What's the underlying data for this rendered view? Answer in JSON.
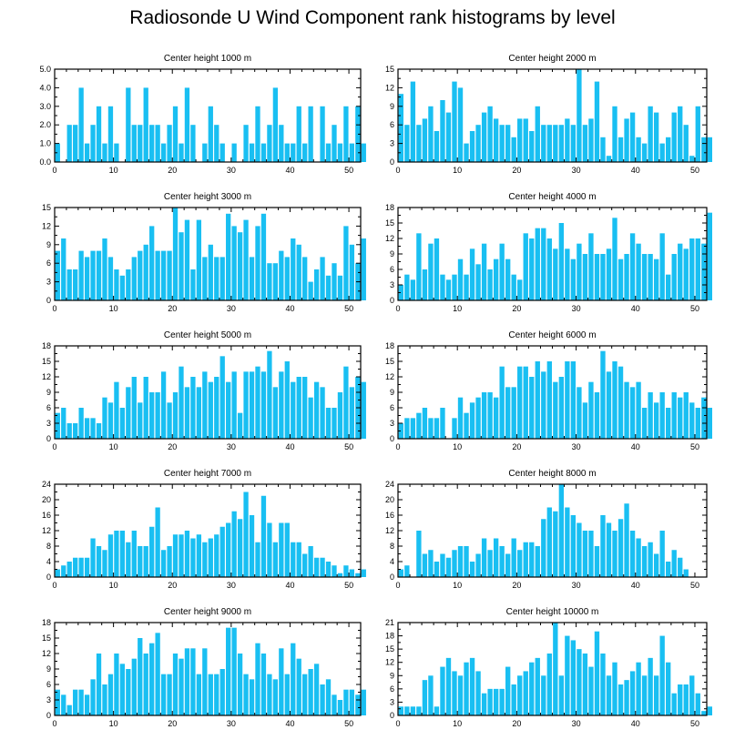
{
  "figure": {
    "title": "Radiosonde U Wind Component rank histograms by level",
    "bar_color": "#19bff2"
  },
  "chart_data": [
    {
      "type": "bar",
      "title": "Center height 1000 m",
      "xlim": [
        0,
        52
      ],
      "ylim": [
        0,
        5
      ],
      "xticks": [
        0,
        10,
        20,
        30,
        40,
        50
      ],
      "yticks": [
        0,
        1,
        2,
        3,
        4,
        5
      ],
      "ytick_labels": [
        "0.0",
        "1.0",
        "2.0",
        "3.0",
        "4.0",
        "5.0"
      ],
      "values": [
        1,
        0,
        2,
        2,
        4,
        1,
        2,
        3,
        1,
        3,
        1,
        0,
        4,
        2,
        2,
        4,
        2,
        2,
        1,
        2,
        3,
        1,
        4,
        2,
        0,
        1,
        3,
        2,
        1,
        0,
        1,
        0,
        2,
        1,
        3,
        1,
        2,
        4,
        2,
        1,
        1,
        3,
        1,
        3,
        0,
        3,
        1,
        2,
        1,
        3,
        1,
        3,
        1
      ]
    },
    {
      "type": "bar",
      "title": "Center height 2000 m",
      "xlim": [
        0,
        52
      ],
      "ylim": [
        0,
        15
      ],
      "xticks": [
        0,
        10,
        20,
        30,
        40,
        50
      ],
      "yticks": [
        0,
        3,
        6,
        9,
        12,
        15
      ],
      "ytick_labels": [
        "0",
        "3",
        "6",
        "9",
        "12",
        "15"
      ],
      "values": [
        11,
        6,
        13,
        6,
        7,
        9,
        5,
        10,
        8,
        13,
        12,
        3,
        5,
        6,
        8,
        9,
        7,
        6,
        6,
        4,
        7,
        7,
        5,
        9,
        6,
        6,
        6,
        6,
        7,
        6,
        15,
        6,
        7,
        13,
        4,
        1,
        9,
        4,
        7,
        8,
        4,
        3,
        9,
        8,
        3,
        4,
        8,
        9,
        6,
        1,
        9,
        4,
        4
      ]
    },
    {
      "type": "bar",
      "title": "Center height 3000 m",
      "xlim": [
        0,
        52
      ],
      "ylim": [
        0,
        15
      ],
      "xticks": [
        0,
        10,
        20,
        30,
        40,
        50
      ],
      "yticks": [
        0,
        3,
        6,
        9,
        12,
        15
      ],
      "ytick_labels": [
        "0",
        "3",
        "6",
        "9",
        "12",
        "15"
      ],
      "values": [
        8,
        10,
        5,
        5,
        8,
        7,
        8,
        8,
        10,
        7,
        5,
        4,
        5,
        7,
        8,
        9,
        12,
        8,
        8,
        8,
        15,
        11,
        13,
        5,
        13,
        7,
        9,
        7,
        7,
        14,
        12,
        11,
        13,
        7,
        12,
        14,
        6,
        6,
        8,
        7,
        10,
        9,
        7,
        3,
        5,
        7,
        4,
        6,
        4,
        12,
        9,
        6,
        10
      ]
    },
    {
      "type": "bar",
      "title": "Center height 4000 m",
      "xlim": [
        0,
        52
      ],
      "ylim": [
        0,
        18
      ],
      "xticks": [
        0,
        10,
        20,
        30,
        40,
        50
      ],
      "yticks": [
        0,
        3,
        6,
        9,
        12,
        15,
        18
      ],
      "ytick_labels": [
        "0",
        "3",
        "6",
        "9",
        "12",
        "15",
        "18"
      ],
      "values": [
        3,
        5,
        4,
        13,
        6,
        11,
        12,
        5,
        4,
        5,
        8,
        5,
        10,
        7,
        11,
        6,
        8,
        11,
        8,
        5,
        4,
        13,
        12,
        14,
        14,
        12,
        10,
        15,
        10,
        8,
        11,
        9,
        13,
        9,
        9,
        10,
        16,
        8,
        9,
        13,
        11,
        9,
        9,
        8,
        13,
        5,
        9,
        11,
        10,
        12,
        12,
        11,
        17
      ]
    },
    {
      "type": "bar",
      "title": "Center height 5000 m",
      "xlim": [
        0,
        52
      ],
      "ylim": [
        0,
        18
      ],
      "xticks": [
        0,
        10,
        20,
        30,
        40,
        50
      ],
      "yticks": [
        0,
        3,
        6,
        9,
        12,
        15,
        18
      ],
      "ytick_labels": [
        "0",
        "3",
        "6",
        "9",
        "12",
        "15",
        "18"
      ],
      "values": [
        5,
        6,
        3,
        3,
        6,
        4,
        4,
        3,
        8,
        7,
        11,
        6,
        10,
        12,
        7,
        12,
        9,
        9,
        13,
        7,
        9,
        14,
        10,
        12,
        10,
        13,
        11,
        12,
        16,
        11,
        13,
        5,
        13,
        13,
        14,
        13,
        17,
        10,
        13,
        15,
        11,
        12,
        12,
        8,
        11,
        10,
        6,
        6,
        9,
        14,
        10,
        12,
        11
      ]
    },
    {
      "type": "bar",
      "title": "Center height 6000 m",
      "xlim": [
        0,
        52
      ],
      "ylim": [
        0,
        18
      ],
      "xticks": [
        0,
        10,
        20,
        30,
        40,
        50
      ],
      "yticks": [
        0,
        3,
        6,
        9,
        12,
        15,
        18
      ],
      "ytick_labels": [
        "0",
        "3",
        "6",
        "9",
        "12",
        "15",
        "18"
      ],
      "values": [
        3,
        4,
        4,
        5,
        6,
        4,
        4,
        6,
        0,
        4,
        8,
        5,
        7,
        8,
        9,
        9,
        8,
        14,
        10,
        10,
        14,
        14,
        12,
        15,
        13,
        15,
        11,
        12,
        15,
        15,
        10,
        7,
        11,
        9,
        17,
        13,
        15,
        14,
        11,
        10,
        11,
        6,
        9,
        7,
        9,
        6,
        9,
        8,
        9,
        7,
        6,
        8,
        6
      ]
    },
    {
      "type": "bar",
      "title": "Center height 7000 m",
      "xlim": [
        0,
        52
      ],
      "ylim": [
        0,
        24
      ],
      "xticks": [
        0,
        10,
        20,
        30,
        40,
        50
      ],
      "yticks": [
        0,
        4,
        8,
        12,
        16,
        20,
        24
      ],
      "ytick_labels": [
        "0",
        "4",
        "8",
        "12",
        "16",
        "20",
        "24"
      ],
      "values": [
        2,
        3,
        4,
        5,
        5,
        5,
        10,
        8,
        7,
        11,
        12,
        12,
        9,
        12,
        8,
        8,
        13,
        18,
        7,
        8,
        11,
        11,
        12,
        10,
        11,
        9,
        10,
        11,
        13,
        14,
        17,
        15,
        22,
        16,
        9,
        21,
        14,
        9,
        14,
        14,
        9,
        9,
        6,
        8,
        5,
        5,
        4,
        3,
        1,
        3,
        2,
        1,
        2
      ]
    },
    {
      "type": "bar",
      "title": "Center height 8000 m",
      "xlim": [
        0,
        52
      ],
      "ylim": [
        0,
        24
      ],
      "xticks": [
        0,
        10,
        20,
        30,
        40,
        50
      ],
      "yticks": [
        0,
        4,
        8,
        12,
        16,
        20,
        24
      ],
      "ytick_labels": [
        "0",
        "4",
        "8",
        "12",
        "16",
        "20",
        "24"
      ],
      "values": [
        2,
        3,
        0,
        12,
        6,
        7,
        4,
        6,
        5,
        7,
        8,
        8,
        4,
        6,
        10,
        7,
        10,
        8,
        6,
        10,
        7,
        9,
        9,
        8,
        15,
        18,
        17,
        24,
        18,
        16,
        14,
        12,
        12,
        8,
        16,
        14,
        12,
        15,
        19,
        12,
        10,
        8,
        9,
        6,
        12,
        4,
        7,
        5,
        2,
        0,
        0,
        0,
        0
      ]
    },
    {
      "type": "bar",
      "title": "Center height 9000 m",
      "xlim": [
        0,
        52
      ],
      "ylim": [
        0,
        18
      ],
      "xticks": [
        0,
        10,
        20,
        30,
        40,
        50
      ],
      "yticks": [
        0,
        3,
        6,
        9,
        12,
        15,
        18
      ],
      "ytick_labels": [
        "0",
        "3",
        "6",
        "9",
        "12",
        "15",
        "18"
      ],
      "values": [
        5,
        4,
        2,
        5,
        5,
        4,
        7,
        12,
        6,
        8,
        12,
        10,
        9,
        11,
        15,
        12,
        14,
        16,
        8,
        8,
        12,
        11,
        13,
        13,
        8,
        13,
        8,
        8,
        9,
        17,
        17,
        12,
        8,
        7,
        14,
        12,
        8,
        7,
        13,
        8,
        14,
        11,
        8,
        9,
        10,
        6,
        7,
        4,
        3,
        5,
        5,
        4,
        5
      ]
    },
    {
      "type": "bar",
      "title": "Center height 10000 m",
      "xlim": [
        0,
        52
      ],
      "ylim": [
        0,
        21
      ],
      "xticks": [
        0,
        10,
        20,
        30,
        40,
        50
      ],
      "yticks": [
        0,
        3,
        6,
        9,
        12,
        15,
        18,
        21
      ],
      "ytick_labels": [
        "0",
        "3",
        "6",
        "9",
        "12",
        "15",
        "18",
        "21"
      ],
      "values": [
        2,
        2,
        2,
        2,
        8,
        9,
        2,
        11,
        13,
        10,
        9,
        12,
        13,
        10,
        5,
        6,
        6,
        6,
        11,
        7,
        9,
        10,
        12,
        13,
        9,
        14,
        21,
        9,
        18,
        17,
        15,
        14,
        11,
        19,
        14,
        9,
        12,
        7,
        8,
        10,
        12,
        9,
        13,
        9,
        18,
        12,
        5,
        7,
        7,
        9,
        5,
        1,
        2
      ]
    }
  ]
}
